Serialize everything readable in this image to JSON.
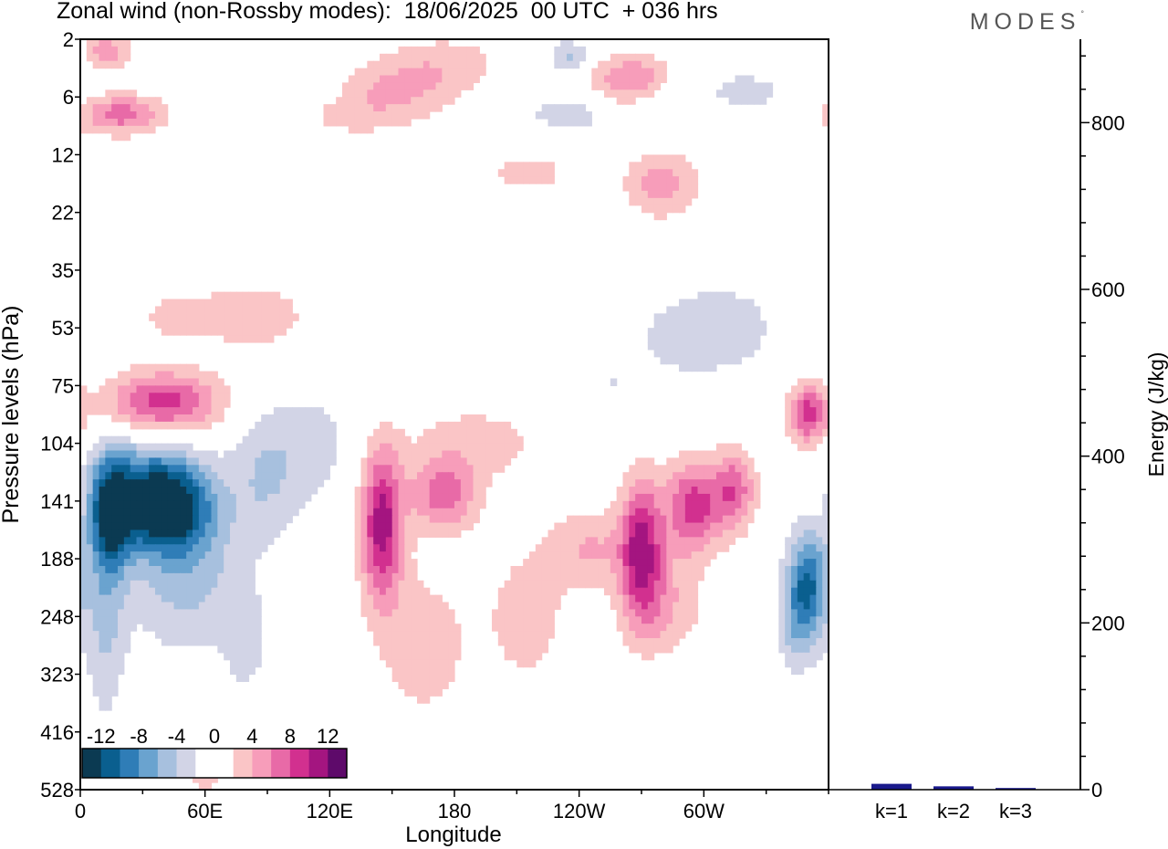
{
  "header": {
    "title": "Zonal wind (non-Rossby modes):  18/06/2025  00 UTC  + 036 hrs"
  },
  "brand": {
    "name": "MODES",
    "mark": "°"
  },
  "colors": {
    "levels": [
      "#0b3a52",
      "#0a5f8f",
      "#2f7db7",
      "#6aa3cf",
      "#a7c0de",
      "#d2d4e6",
      "#ffffff",
      "#ffffff",
      "#fac5c6",
      "#f79dba",
      "#e86aa7",
      "#d2308f",
      "#a41580",
      "#5e0a6a"
    ]
  },
  "chart_data": [
    {
      "type": "heatmap",
      "title": "Zonal wind (non-Rossby modes):  18/06/2025  00 UTC  + 036 hrs",
      "xlabel": "Longitude",
      "ylabel": "Pressure levels (hPa)",
      "x_ticks": [
        "0",
        "60E",
        "120E",
        "180",
        "120W",
        "60W"
      ],
      "x_tick_values": [
        0,
        60,
        120,
        180,
        240,
        300
      ],
      "xlim": [
        0,
        360
      ],
      "y_ticks": [
        "2",
        "6",
        "12",
        "22",
        "35",
        "53",
        "75",
        "104",
        "141",
        "188",
        "248",
        "323",
        "416",
        "528"
      ],
      "colorbar": {
        "ticks": [
          "-12",
          "-8",
          "-4",
          "0",
          "4",
          "8",
          "12"
        ],
        "levels": [
          -14,
          -12,
          -10,
          -8,
          -6,
          -4,
          -2,
          0,
          2,
          4,
          6,
          8,
          10,
          12,
          14
        ]
      },
      "features": [
        {
          "lon": 40,
          "lev": 8.1,
          "value": -14.0,
          "dlon": 22,
          "dlev": 0.75
        },
        {
          "lon": 15,
          "lev": 8.2,
          "value": -10.5,
          "dlon": 10,
          "dlev": 0.9
        },
        {
          "lon": 50,
          "lev": 9.2,
          "value": -5.0,
          "dlon": 28,
          "dlev": 1.4
        },
        {
          "lon": 12,
          "lev": 9.8,
          "value": -4.5,
          "dlon": 10,
          "dlev": 2.0
        },
        {
          "lon": 90,
          "lev": 7.5,
          "value": -4.0,
          "dlon": 18,
          "dlev": 1.2
        },
        {
          "lon": 30,
          "lev": 7.4,
          "value": -3.5,
          "dlon": 25,
          "dlev": 0.7
        },
        {
          "lon": 115,
          "lev": 7.0,
          "value": -2.5,
          "dlon": 18,
          "dlev": 1.0
        },
        {
          "lon": 80,
          "lev": 10.5,
          "value": -2.5,
          "dlon": 12,
          "dlev": 1.0
        },
        {
          "lon": 350,
          "lev": 9.4,
          "value": -9.5,
          "dlon": 10,
          "dlev": 0.9
        },
        {
          "lon": 345,
          "lev": 10.2,
          "value": -4.0,
          "dlon": 10,
          "dlev": 0.8
        },
        {
          "lon": 330,
          "lev": 12.8,
          "value": -2.0,
          "dlon": 12,
          "dlev": 1.2
        },
        {
          "lon": 310,
          "lev": 5.0,
          "value": -3.0,
          "dlon": 30,
          "dlev": 0.9
        },
        {
          "lon": 285,
          "lev": 5.2,
          "value": -2.0,
          "dlon": 20,
          "dlev": 0.6
        },
        {
          "lon": 255,
          "lev": 6.0,
          "value": -2.0,
          "dlon": 12,
          "dlev": 0.5
        },
        {
          "lon": 230,
          "lev": 7.7,
          "value": -1.5,
          "dlon": 14,
          "dlev": 0.4
        },
        {
          "lon": 130,
          "lev": 2.4,
          "value": -1.5,
          "dlon": 22,
          "dlev": 0.55
        },
        {
          "lon": 235,
          "lev": 1.3,
          "value": -3.0,
          "dlon": 25,
          "dlev": 0.35
        },
        {
          "lon": 235,
          "lev": 0.3,
          "value": -4.5,
          "dlon": 10,
          "dlev": 0.3
        },
        {
          "lon": 320,
          "lev": 0.9,
          "value": -3.0,
          "dlon": 22,
          "dlev": 0.35
        },
        {
          "lon": 280,
          "lev": 1.2,
          "value": -2.0,
          "dlon": 12,
          "dlev": 0.5
        },
        {
          "lon": 45,
          "lev": 2.3,
          "value": -1.8,
          "dlon": 25,
          "dlev": 0.25
        },
        {
          "lon": 95,
          "lev": 0.8,
          "value": -1.8,
          "dlon": 30,
          "dlev": 0.3
        },
        {
          "lon": 20,
          "lev": 3.1,
          "value": -1.5,
          "dlon": 22,
          "dlev": 0.3
        },
        {
          "lon": 40,
          "lev": 6.3,
          "value": 9.0,
          "dlon": 28,
          "dlev": 0.55
        },
        {
          "lon": 85,
          "lev": 4.8,
          "value": 3.0,
          "dlon": 30,
          "dlev": 0.7
        },
        {
          "lon": 45,
          "lev": 4.8,
          "value": 2.5,
          "dlon": 20,
          "dlev": 0.5
        },
        {
          "lon": 145,
          "lev": 8.4,
          "value": 11.0,
          "dlon": 10,
          "dlev": 1.3
        },
        {
          "lon": 175,
          "lev": 7.9,
          "value": 7.0,
          "dlon": 16,
          "dlev": 0.6
        },
        {
          "lon": 190,
          "lev": 7.0,
          "value": 3.0,
          "dlon": 35,
          "dlev": 0.7
        },
        {
          "lon": 165,
          "lev": 10.5,
          "value": 3.0,
          "dlon": 25,
          "dlev": 1.5
        },
        {
          "lon": 215,
          "lev": 10.0,
          "value": 3.0,
          "dlon": 20,
          "dlev": 1.3
        },
        {
          "lon": 270,
          "lev": 8.8,
          "value": 10.0,
          "dlon": 10,
          "dlev": 1.2
        },
        {
          "lon": 295,
          "lev": 8.1,
          "value": 9.0,
          "dlon": 14,
          "dlev": 0.8
        },
        {
          "lon": 315,
          "lev": 7.8,
          "value": 7.0,
          "dlon": 10,
          "dlev": 0.7
        },
        {
          "lon": 245,
          "lev": 8.8,
          "value": 4.0,
          "dlon": 20,
          "dlev": 0.7
        },
        {
          "lon": 280,
          "lev": 9.8,
          "value": 4.0,
          "dlon": 20,
          "dlev": 0.9
        },
        {
          "lon": 350,
          "lev": 6.5,
          "value": 9.0,
          "dlon": 10,
          "dlev": 0.5
        },
        {
          "lon": 20,
          "lev": 1.3,
          "value": 7.0,
          "dlon": 20,
          "dlev": 0.35
        },
        {
          "lon": 13,
          "lev": 0.2,
          "value": 5.0,
          "dlon": 12,
          "dlev": 0.35
        },
        {
          "lon": 150,
          "lev": 0.9,
          "value": 4.0,
          "dlon": 30,
          "dlev": 0.5
        },
        {
          "lon": 175,
          "lev": 0.4,
          "value": 3.0,
          "dlon": 30,
          "dlev": 0.5
        },
        {
          "lon": 265,
          "lev": 0.7,
          "value": 6.0,
          "dlon": 20,
          "dlev": 0.45
        },
        {
          "lon": 280,
          "lev": 2.5,
          "value": 5.0,
          "dlon": 18,
          "dlev": 0.6
        },
        {
          "lon": 215,
          "lev": 2.3,
          "value": 2.5,
          "dlon": 30,
          "dlev": 0.5
        },
        {
          "lon": 350,
          "lev": 2.3,
          "value": 2.0,
          "dlon": 14,
          "dlev": 0.7
        },
        {
          "lon": 130,
          "lev": 1.4,
          "value": 2.0,
          "dlon": 30,
          "dlev": 0.4
        },
        {
          "lon": 60,
          "lev": 12.8,
          "value": 2.5,
          "dlon": 10,
          "dlev": 1.0
        }
      ]
    },
    {
      "type": "bar",
      "categories": [
        "k=1",
        "k=2",
        "k=3"
      ],
      "values": [
        7,
        4,
        2
      ],
      "ylabel": "Energy (J/kg)",
      "y_ticks": [
        "0",
        "200",
        "400",
        "600",
        "800"
      ],
      "ylim": [
        0,
        900
      ],
      "bar_color": "#1a1a8c"
    }
  ]
}
